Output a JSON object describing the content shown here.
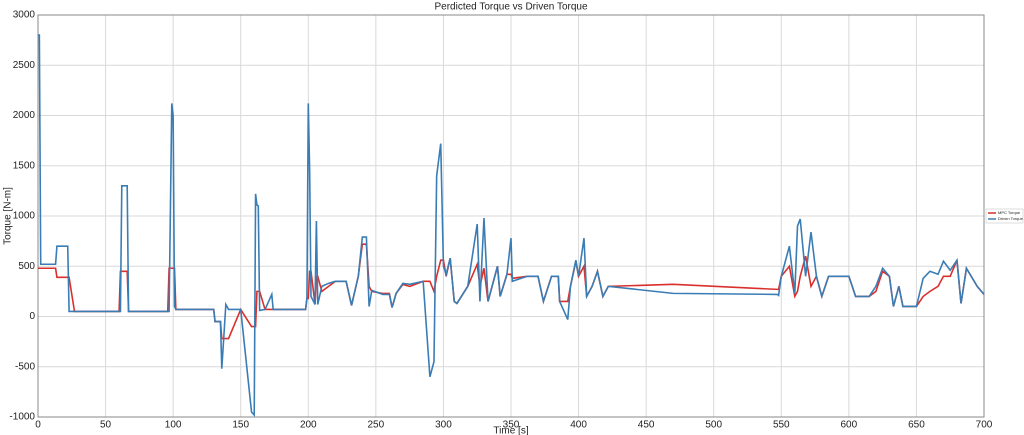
{
  "chart_data": {
    "type": "line",
    "title": "Perdicted Torque vs Driven Torque",
    "x_label": "Time [s]",
    "y_label": "Torque [N-m]",
    "x": [
      0,
      1,
      2,
      13,
      14,
      22,
      23,
      27,
      60,
      61,
      62,
      66,
      67,
      96,
      97,
      99,
      100,
      101,
      102,
      130,
      131,
      135,
      136,
      139,
      141,
      150,
      158,
      160,
      161,
      162,
      163,
      164,
      168,
      173,
      174,
      198,
      199,
      200,
      201,
      202,
      205,
      206,
      207,
      210,
      215,
      220,
      228,
      232,
      237,
      240,
      243,
      245,
      247,
      255,
      260,
      262,
      265,
      270,
      275,
      285,
      290,
      293,
      295,
      298,
      300,
      302,
      305,
      308,
      310,
      318,
      325,
      327,
      330,
      333,
      340,
      342,
      347,
      350,
      351,
      362,
      370,
      374,
      380,
      385,
      386,
      392,
      394,
      398,
      400,
      404,
      406,
      410,
      414,
      418,
      422,
      470,
      547,
      548,
      550,
      556,
      560,
      562,
      564,
      568,
      572,
      576,
      580,
      585,
      590,
      600,
      605,
      615,
      620,
      625,
      630,
      633,
      637,
      640,
      650,
      655,
      660,
      666,
      670,
      675,
      680,
      683,
      687,
      695,
      700
    ],
    "series": [
      {
        "name": "MPC Torque",
        "color": "#d9302c",
        "values": [
          480,
          480,
          480,
          480,
          390,
          390,
          390,
          50,
          50,
          450,
          450,
          450,
          50,
          50,
          480,
          480,
          480,
          480,
          70,
          70,
          -50,
          -50,
          -220,
          -220,
          -220,
          70,
          -100,
          -100,
          -100,
          250,
          250,
          250,
          70,
          70,
          70,
          70,
          180,
          180,
          450,
          450,
          120,
          400,
          400,
          250,
          300,
          350,
          350,
          110,
          400,
          720,
          720,
          300,
          250,
          230,
          230,
          90,
          230,
          320,
          300,
          350,
          350,
          250,
          400,
          560,
          560,
          400,
          580,
          150,
          130,
          300,
          520,
          300,
          480,
          150,
          500,
          200,
          420,
          420,
          380,
          400,
          400,
          150,
          400,
          400,
          150,
          150,
          300,
          550,
          400,
          500,
          200,
          300,
          450,
          200,
          300,
          320,
          270,
          270,
          400,
          500,
          200,
          250,
          400,
          600,
          300,
          400,
          200,
          400,
          400,
          400,
          200,
          200,
          250,
          450,
          400,
          100,
          300,
          100,
          100,
          200,
          250,
          300,
          400,
          400,
          560,
          130,
          480,
          300,
          220
        ]
      },
      {
        "name": "Driven Torque",
        "color": "#3a7db5",
        "values": [
          2800,
          2800,
          520,
          520,
          700,
          700,
          50,
          50,
          50,
          50,
          1300,
          1300,
          50,
          50,
          50,
          2120,
          2000,
          100,
          70,
          70,
          -50,
          -50,
          -520,
          120,
          70,
          70,
          -950,
          -980,
          1220,
          1110,
          1100,
          60,
          70,
          220,
          70,
          70,
          180,
          2120,
          1450,
          200,
          120,
          950,
          120,
          300,
          330,
          350,
          350,
          110,
          400,
          790,
          790,
          100,
          260,
          220,
          220,
          90,
          230,
          330,
          320,
          350,
          -600,
          -450,
          1400,
          1720,
          500,
          420,
          580,
          150,
          130,
          300,
          920,
          150,
          980,
          150,
          500,
          200,
          420,
          780,
          350,
          400,
          400,
          150,
          400,
          400,
          150,
          -30,
          300,
          560,
          400,
          780,
          200,
          300,
          450,
          200,
          300,
          230,
          220,
          210,
          400,
          700,
          230,
          900,
          970,
          400,
          840,
          400,
          200,
          400,
          400,
          400,
          200,
          200,
          300,
          480,
          400,
          100,
          300,
          100,
          100,
          380,
          450,
          420,
          550,
          460,
          560,
          130,
          480,
          300,
          220
        ]
      }
    ],
    "xlim": [
      0,
      700
    ],
    "ylim": [
      -1000,
      3000
    ],
    "xticks": [
      0,
      50,
      100,
      150,
      200,
      250,
      300,
      350,
      400,
      450,
      500,
      550,
      600,
      650,
      700
    ],
    "yticks": [
      -1000,
      -500,
      0,
      500,
      1000,
      1500,
      2000,
      2500,
      3000
    ],
    "grid": true,
    "legend": "right"
  }
}
